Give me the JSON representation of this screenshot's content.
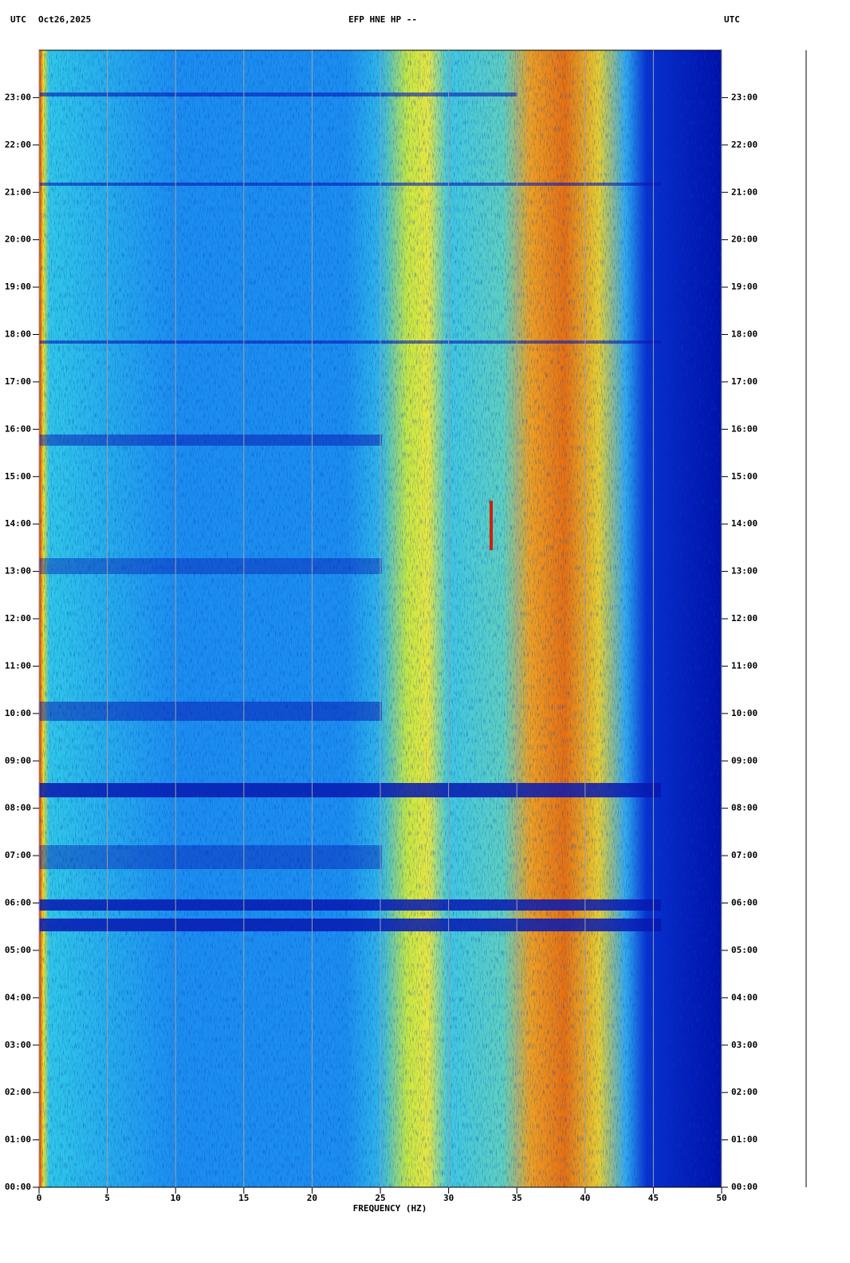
{
  "chart_data": {
    "type": "spectrogram",
    "title": "EFP HNE HP --",
    "time_zone_left": "UTC",
    "date": "Oct26,2025",
    "time_zone_right": "UTC",
    "xlabel": "FREQUENCY (HZ)",
    "xlim": [
      0,
      50
    ],
    "xticks": [
      0,
      5,
      10,
      15,
      20,
      25,
      30,
      35,
      40,
      45,
      50
    ],
    "ylim": [
      0,
      24
    ],
    "yticks": [
      {
        "value": 0,
        "label": "00:00"
      },
      {
        "value": 1,
        "label": "01:00"
      },
      {
        "value": 2,
        "label": "02:00"
      },
      {
        "value": 3,
        "label": "03:00"
      },
      {
        "value": 4,
        "label": "04:00"
      },
      {
        "value": 5,
        "label": "05:00"
      },
      {
        "value": 6,
        "label": "06:00"
      },
      {
        "value": 7,
        "label": "07:00"
      },
      {
        "value": 8,
        "label": "08:00"
      },
      {
        "value": 9,
        "label": "09:00"
      },
      {
        "value": 10,
        "label": "10:00"
      },
      {
        "value": 11,
        "label": "11:00"
      },
      {
        "value": 12,
        "label": "12:00"
      },
      {
        "value": 13,
        "label": "13:00"
      },
      {
        "value": 14,
        "label": "14:00"
      },
      {
        "value": 15,
        "label": "15:00"
      },
      {
        "value": 16,
        "label": "16:00"
      },
      {
        "value": 17,
        "label": "17:00"
      },
      {
        "value": 18,
        "label": "18:00"
      },
      {
        "value": 19,
        "label": "19:00"
      },
      {
        "value": 20,
        "label": "20:00"
      },
      {
        "value": 21,
        "label": "21:00"
      },
      {
        "value": 22,
        "label": "22:00"
      },
      {
        "value": 23,
        "label": "23:00"
      }
    ],
    "grid": true
  }
}
